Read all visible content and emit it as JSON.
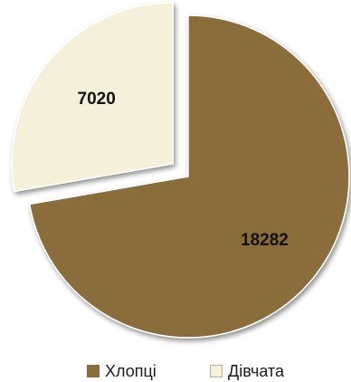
{
  "chart_data": {
    "type": "pie",
    "title": "",
    "categories": [
      "Хлопці",
      "Дівчата"
    ],
    "values": [
      18282,
      7020
    ],
    "value_labels": [
      "18282",
      "7020"
    ],
    "colors": [
      "#8a6d3b",
      "#f4f0d9"
    ],
    "exploded": [
      false,
      true
    ],
    "legend": {
      "position": "bottom",
      "items": [
        {
          "label": "Хлопці",
          "color": "#8a6d3b"
        },
        {
          "label": "Дівчата",
          "color": "#f4f0d9"
        }
      ]
    }
  }
}
